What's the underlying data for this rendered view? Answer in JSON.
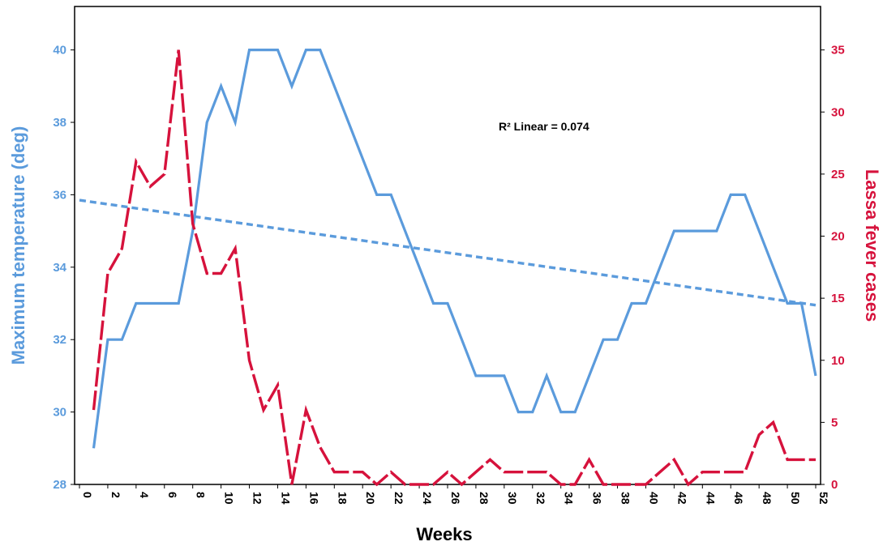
{
  "chart_data": {
    "type": "line",
    "xlabel": "Weeks",
    "ylabel_left": "Maximum temperature (deg)",
    "ylabel_right": "Lassa fever cases",
    "xlim": [
      0,
      52
    ],
    "ylim_left": [
      28,
      41.2
    ],
    "ylim_right": [
      0,
      38.5
    ],
    "x_ticks": [
      0,
      2,
      4,
      6,
      8,
      10,
      12,
      14,
      16,
      18,
      20,
      22,
      24,
      26,
      28,
      30,
      32,
      34,
      36,
      38,
      40,
      42,
      44,
      46,
      48,
      50,
      52
    ],
    "y_ticks_left": [
      28,
      30,
      32,
      34,
      36,
      38,
      40
    ],
    "y_ticks_right": [
      0,
      5,
      10,
      15,
      20,
      25,
      30,
      35
    ],
    "annotation": "R² Linear = 0.074",
    "grid": false,
    "series": [
      {
        "axis": "left",
        "color": "#5b9bdc",
        "style": "solid",
        "x": [
          1,
          2,
          3,
          4,
          5,
          6,
          7,
          8,
          9,
          10,
          11,
          12,
          13,
          14,
          15,
          16,
          17,
          18,
          19,
          20,
          21,
          22,
          23,
          24,
          25,
          26,
          27,
          28,
          29,
          30,
          31,
          32,
          33,
          34,
          35,
          36,
          37,
          38,
          39,
          40,
          41,
          42,
          43,
          44,
          45,
          46,
          47,
          48,
          49,
          50,
          51,
          52
        ],
        "values": [
          29,
          32,
          32,
          33,
          33,
          33,
          33,
          35,
          38,
          39,
          38,
          40,
          40,
          40,
          39,
          40,
          40,
          39,
          38,
          37,
          36,
          36,
          35,
          34,
          33,
          33,
          32,
          31,
          31,
          31,
          30,
          30,
          31,
          30,
          30,
          31,
          32,
          32,
          33,
          33,
          34,
          35,
          35,
          35,
          35,
          36,
          36,
          35,
          34,
          33,
          33,
          31
        ]
      },
      {
        "axis": "right",
        "color": "#d6123c",
        "style": "dashed",
        "x": [
          1,
          2,
          3,
          4,
          5,
          6,
          7,
          8,
          9,
          10,
          11,
          12,
          13,
          14,
          15,
          16,
          17,
          18,
          19,
          20,
          21,
          22,
          23,
          24,
          25,
          26,
          27,
          28,
          29,
          30,
          31,
          32,
          33,
          34,
          35,
          36,
          37,
          38,
          39,
          40,
          41,
          42,
          43,
          44,
          45,
          46,
          47,
          48,
          49,
          50,
          51,
          52
        ],
        "values": [
          6,
          17,
          19,
          26,
          24,
          25,
          35,
          21,
          17,
          17,
          19,
          10,
          6,
          8,
          0,
          6,
          3,
          1,
          1,
          1,
          0,
          1,
          0,
          0,
          0,
          1,
          0,
          1,
          2,
          1,
          1,
          1,
          1,
          0,
          0,
          2,
          0,
          0,
          0,
          0,
          1,
          2,
          0,
          1,
          1,
          1,
          1,
          4,
          5,
          2,
          2,
          2
        ]
      },
      {
        "axis": "left",
        "color": "#5b9bdc",
        "style": "dotted",
        "kind": "linear-fit",
        "x": [
          0,
          52
        ],
        "values": [
          35.85,
          32.95
        ]
      }
    ]
  }
}
